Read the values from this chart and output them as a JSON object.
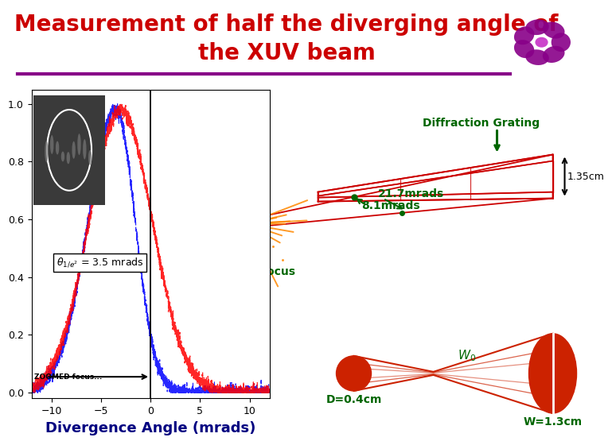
{
  "title_line1": "Measurement of half the diverging angle of",
  "title_line2": "the XUV beam",
  "title_color": "#cc0000",
  "title_fontsize": 20,
  "divider_color": "#880088",
  "bg_color": "#ffffff",
  "plot_xlim": [
    -12,
    12
  ],
  "plot_ylim": [
    -0.02,
    1.05
  ],
  "plot_xlabel": "Divergence Angle (mrads)",
  "xlabel_fontsize": 13,
  "axis_label_color": "#000080",
  "theta_label": "$\\theta_{1/e^2}$ = 3.5 mrads",
  "focus_label": "Focus",
  "focus_label_color": "#006600",
  "diffgrating_label": "Diffraction Grating",
  "diffgrating_label_color": "#006600",
  "angle1_label": "8.1mrads",
  "angle1_color": "#006600",
  "angle2_label": "21.7mrads",
  "angle2_color": "#006600",
  "dim1_label": "1.35cm",
  "dim1_color": "#000000",
  "beam_label1": "$W_0$",
  "beam_label1_color": "#006600",
  "beam_label2": "D=0.4cm",
  "beam_label2_color": "#006600",
  "beam_label3": "W=1.3cm",
  "beam_label3_color": "#006600",
  "grating_color": "#cc0000",
  "orange_color": "#FF8800",
  "beam_color": "#cc2200"
}
